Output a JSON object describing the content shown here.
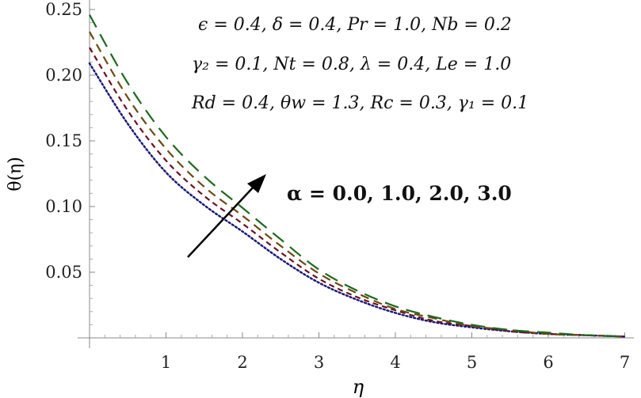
{
  "chart_data": {
    "type": "line",
    "xlabel": "η",
    "ylabel": "θ(η)",
    "xlim": [
      0,
      7.2
    ],
    "ylim": [
      0,
      0.25
    ],
    "grid": false,
    "x_ticks": [
      "1",
      "2",
      "3",
      "4",
      "5",
      "6",
      "7"
    ],
    "y_ticks": [
      "0.05",
      "0.10",
      "0.15",
      "0.20",
      "0.25"
    ],
    "x": [
      0,
      0.5,
      1,
      1.5,
      2,
      2.5,
      3,
      3.5,
      4,
      4.5,
      5,
      5.5,
      6,
      6.5,
      7
    ],
    "series": [
      {
        "alpha": 0.0,
        "color": "#1a1a7a",
        "style": "dotted",
        "values": [
          0.209,
          0.163,
          0.126,
          0.101,
          0.081,
          0.06,
          0.042,
          0.029,
          0.019,
          0.012,
          0.008,
          0.005,
          0.003,
          0.002,
          0.001
        ]
      },
      {
        "alpha": 1.0,
        "color": "#6b1020",
        "style": "dashed-short",
        "values": [
          0.221,
          0.173,
          0.135,
          0.108,
          0.087,
          0.065,
          0.045,
          0.031,
          0.021,
          0.013,
          0.009,
          0.005,
          0.003,
          0.002,
          0.001
        ]
      },
      {
        "alpha": 2.0,
        "color": "#6a4a10",
        "style": "dashed-medium",
        "values": [
          0.233,
          0.183,
          0.144,
          0.115,
          0.093,
          0.07,
          0.049,
          0.034,
          0.022,
          0.015,
          0.009,
          0.006,
          0.003,
          0.002,
          0.001
        ]
      },
      {
        "alpha": 3.0,
        "color": "#1d6a1d",
        "style": "dashed-long",
        "values": [
          0.246,
          0.194,
          0.153,
          0.123,
          0.099,
          0.075,
          0.052,
          0.036,
          0.024,
          0.016,
          0.01,
          0.006,
          0.004,
          0.002,
          0.001
        ]
      }
    ],
    "annotations": {
      "line1": "ϵ = 0.4,  δ = 0.4,  Pr = 1.0,   Nb = 0.2",
      "line2": "γ₂  =  0.1,  Nt = 0.8,  λ = 0.4,  Le = 1.0",
      "line3": "Rd = 0.4,  θw = 1.3,  Rc = 0.3,  γ₁ = 0.1",
      "alpha_label": "α  =  0.0,  1.0,  2.0,  3.0"
    }
  }
}
